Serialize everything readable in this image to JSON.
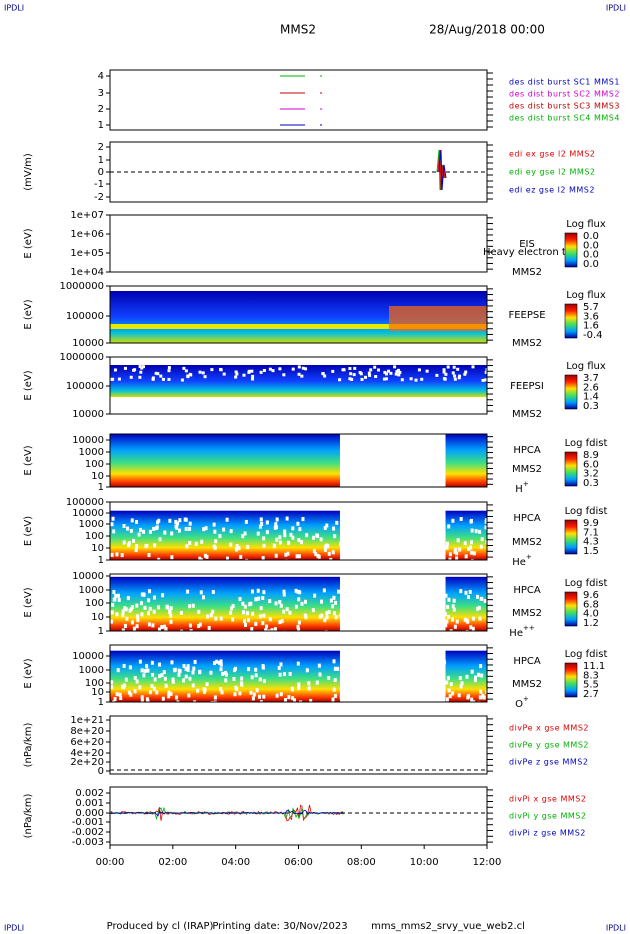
{
  "corners": [
    "IPDLI",
    "IPDLI",
    "IPDLI",
    "IPDLI"
  ],
  "header": {
    "mission": "MMS2",
    "date": "28/Aug/2018 00:00"
  },
  "panels": [
    {
      "ylabel": "",
      "yticks": [
        "4",
        "3",
        "2",
        "1"
      ],
      "legend": [
        "des dist burst SC1 MMS1",
        "des dist burst SC2 MMS2",
        "des dist burst SC3 MMS3",
        "des dist burst SC4 MMS4"
      ]
    },
    {
      "ylabel": "(mV/m)",
      "yticks": [
        "2",
        "1",
        "0",
        "-1",
        "-2"
      ],
      "legend": [
        "edi ex gse l2 MMS2",
        "edi ey gse l2 MMS2",
        "edi ez gse l2 MMS2"
      ]
    },
    {
      "ylabel": "E (eV)",
      "yticks": [
        "1e+07",
        "1e+06",
        "1e+05",
        "1e+04"
      ],
      "instrument": "EIS",
      "probe": "MMS2",
      "note": "Heavy electron to",
      "colorbar": {
        "title": "Log flux",
        "ticks": [
          "0.0",
          "0.0",
          "0.0",
          "0.0"
        ]
      }
    },
    {
      "ylabel": "E (eV)",
      "yticks": [
        "1000000",
        "100000",
        "10000"
      ],
      "instrument": "FEEPSE",
      "probe": "MMS2",
      "colorbar": {
        "title": "Log flux",
        "ticks": [
          "5.7",
          "3.6",
          "1.6",
          "-0.4"
        ]
      }
    },
    {
      "ylabel": "E (eV)",
      "yticks": [
        "1000000",
        "100000",
        "10000"
      ],
      "instrument": "FEEPSI",
      "probe": "MMS2",
      "colorbar": {
        "title": "Log flux",
        "ticks": [
          "3.7",
          "2.6",
          "1.4",
          "0.3"
        ]
      }
    },
    {
      "ylabel": "E (eV)",
      "yticks": [
        "10000",
        "1000",
        "100",
        "10",
        "1"
      ],
      "instrument": "HPCA",
      "probe": "MMS2",
      "ion": {
        "name": "H",
        "charge": "+"
      },
      "colorbar": {
        "title": "Log fdist",
        "ticks": [
          "8.9",
          "6.0",
          "3.2",
          "0.3"
        ]
      }
    },
    {
      "ylabel": "E (eV)",
      "yticks": [
        "100000",
        "10000",
        "1000",
        "100",
        "10",
        "1"
      ],
      "instrument": "HPCA",
      "probe": "MMS2",
      "ion": {
        "name": "He",
        "charge": "+"
      },
      "colorbar": {
        "title": "Log fdist",
        "ticks": [
          "9.9",
          "7.1",
          "4.3",
          "1.5"
        ]
      }
    },
    {
      "ylabel": "E (eV)",
      "yticks": [
        "10000",
        "1000",
        "100",
        "10",
        "1"
      ],
      "instrument": "HPCA",
      "probe": "MMS2",
      "ion": {
        "name": "He",
        "charge": "++"
      },
      "colorbar": {
        "title": "Log fdist",
        "ticks": [
          "9.6",
          "6.8",
          "4.0",
          "1.2"
        ]
      }
    },
    {
      "ylabel": "E (eV)",
      "yticks": [
        "10000",
        "1000",
        "100",
        "10",
        "1"
      ],
      "instrument": "HPCA",
      "probe": "MMS2",
      "ion": {
        "name": "O",
        "charge": "+"
      },
      "colorbar": {
        "title": "Log fdist",
        "ticks": [
          "11.1",
          "8.3",
          "5.5",
          "2.7"
        ]
      }
    },
    {
      "ylabel": "(nPa/km)",
      "yticks": [
        "1e+21",
        "8e+20",
        "6e+20",
        "4e+20",
        "2e+20",
        "0"
      ],
      "legend": [
        "divPe x gse MMS2",
        "divPe y gse MMS2",
        "divPe z gse MMS2"
      ]
    },
    {
      "ylabel": "(nPa/km)",
      "yticks": [
        "0.002",
        "0.001",
        "0.000",
        "-0.001",
        "-0.002",
        "-0.003"
      ],
      "legend": [
        "divPi x gse MMS2",
        "divPi y gse MMS2",
        "divPi z gse MMS2"
      ]
    }
  ],
  "xticks": [
    "00:00",
    "02:00",
    "04:00",
    "06:00",
    "08:00",
    "10:00",
    "12:00"
  ],
  "footer": {
    "producer": "Produced by cl (IRAP)",
    "printing": "Printing date: 30/Nov/2023",
    "file": "mms_mms2_srvy_vue_web2.cl"
  }
}
